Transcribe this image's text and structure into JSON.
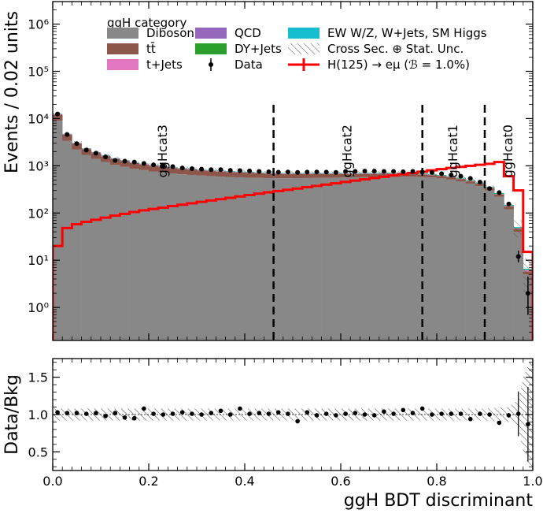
{
  "chart_data": [
    {
      "type": "area",
      "title": "",
      "legend_title": "ggH category",
      "xlabel": "",
      "ylabel": "Events / 0.02 units",
      "xlim": [
        0.0,
        1.0
      ],
      "ylim": [
        0.2,
        3000000
      ],
      "yscale": "log",
      "yticks": [
        {
          "value": 1,
          "label": "10⁰"
        },
        {
          "value": 10,
          "label": "10¹"
        },
        {
          "value": 100,
          "label": "10²"
        },
        {
          "value": 1000,
          "label": "10³"
        },
        {
          "value": 10000,
          "label": "10⁴"
        },
        {
          "value": 100000,
          "label": "10⁵"
        },
        {
          "value": 1000000,
          "label": "10⁶"
        }
      ],
      "legend": [
        {
          "name": "Diboson",
          "color": "#888888",
          "kind": "fill"
        },
        {
          "name": "tt̄",
          "color": "#8c564b",
          "kind": "fill"
        },
        {
          "name": "t+Jets",
          "color": "#e377c2",
          "kind": "fill"
        },
        {
          "name": "QCD",
          "color": "#9467bd",
          "kind": "fill"
        },
        {
          "name": "DY+Jets",
          "color": "#2ca02c",
          "kind": "fill"
        },
        {
          "name": "Data",
          "color": "#000000",
          "kind": "marker"
        },
        {
          "name": "EW W/Z, W+Jets, SM Higgs",
          "color": "#17becf",
          "kind": "fill"
        },
        {
          "name": "Cross Sec. ⊕ Stat. Unc.",
          "color": "#555555",
          "kind": "hatch"
        },
        {
          "name": "H(125) → eμ (ℬ = 1.0%)",
          "color": "#ff0000",
          "kind": "line"
        }
      ],
      "category_boundaries": [
        0.46,
        0.77,
        0.9
      ],
      "category_labels": [
        {
          "label": "ggHcat3",
          "x": 0.23
        },
        {
          "label": "ggHcat2",
          "x": 0.615
        },
        {
          "label": "ggHcat1",
          "x": 0.835
        },
        {
          "label": "ggHcat0",
          "x": 0.95
        }
      ],
      "bin_edges": [
        0.0,
        0.02,
        0.04,
        0.06,
        0.08,
        0.1,
        0.12,
        0.14,
        0.16,
        0.18,
        0.2,
        0.22,
        0.24,
        0.26,
        0.28,
        0.3,
        0.32,
        0.34,
        0.36,
        0.38,
        0.4,
        0.42,
        0.44,
        0.46,
        0.48,
        0.5,
        0.52,
        0.54,
        0.56,
        0.58,
        0.6,
        0.62,
        0.64,
        0.66,
        0.68,
        0.7,
        0.72,
        0.74,
        0.76,
        0.78,
        0.8,
        0.82,
        0.84,
        0.86,
        0.88,
        0.9,
        0.92,
        0.94,
        0.96,
        0.98,
        1.0
      ],
      "series": [
        {
          "name": "Diboson",
          "values": [
            9000,
            3400,
            2200,
            1700,
            1400,
            1200,
            1050,
            950,
            870,
            810,
            760,
            720,
            690,
            660,
            640,
            620,
            605,
            590,
            580,
            570,
            560,
            555,
            548,
            545,
            545,
            548,
            550,
            552,
            555,
            560,
            565,
            570,
            575,
            580,
            585,
            588,
            590,
            588,
            580,
            565,
            540,
            510,
            470,
            420,
            370,
            300,
            220,
            120,
            40,
            5
          ]
        },
        {
          "name": "tt̄",
          "values": [
            3000,
            1150,
            750,
            540,
            450,
            380,
            330,
            300,
            275,
            255,
            235,
            220,
            205,
            195,
            185,
            175,
            168,
            160,
            153,
            147,
            142,
            137,
            132,
            128,
            124,
            120,
            116,
            113,
            110,
            107,
            104,
            100,
            97,
            93,
            90,
            87,
            83,
            79,
            75,
            70,
            65,
            60,
            54,
            48,
            42,
            36,
            28,
            17,
            6,
            0.8
          ]
        },
        {
          "name": "t+Jets",
          "values": [
            300,
            110,
            70,
            55,
            45,
            38,
            33,
            30,
            27,
            25,
            23,
            22,
            21,
            20,
            19,
            18,
            17,
            17,
            16,
            16,
            15,
            15,
            15,
            14,
            14,
            14,
            14,
            13,
            13,
            13,
            13,
            12,
            12,
            12,
            12,
            11,
            11,
            11,
            10,
            10,
            9,
            9,
            8,
            7,
            6,
            5,
            4,
            2.5,
            1,
            0.3
          ]
        },
        {
          "name": "QCD",
          "values": [
            60,
            25,
            16,
            12,
            10,
            9,
            8,
            7,
            7,
            6,
            6,
            6,
            5,
            5,
            5,
            5,
            5,
            5,
            5,
            4,
            4,
            4,
            4,
            4,
            4,
            4,
            4,
            4,
            4,
            4,
            4,
            4,
            4,
            4,
            4,
            4,
            3,
            3,
            3,
            3,
            3,
            3,
            3,
            2,
            2,
            2,
            1.5,
            1,
            0.5,
            0.1
          ]
        },
        {
          "name": "DY+Jets",
          "values": [
            80,
            35,
            22,
            17,
            14,
            12,
            11,
            10,
            10,
            9,
            9,
            9,
            9,
            9,
            9,
            9,
            9,
            9,
            9,
            9,
            9,
            9,
            9,
            9,
            10,
            10,
            10,
            10,
            10,
            10,
            11,
            11,
            11,
            11,
            12,
            12,
            12,
            12,
            12,
            12,
            12,
            11,
            11,
            10,
            9,
            8,
            6,
            4,
            1.5,
            0.2
          ]
        },
        {
          "name": "EW W/Z, W+Jets, SM Higgs",
          "values": [
            120,
            50,
            32,
            24,
            20,
            17,
            15,
            14,
            13,
            12,
            12,
            11,
            11,
            11,
            11,
            11,
            11,
            11,
            11,
            11,
            11,
            11,
            11,
            11,
            11,
            12,
            12,
            12,
            12,
            12,
            12,
            12,
            12,
            12,
            12,
            12,
            12,
            12,
            12,
            12,
            12,
            11,
            11,
            10,
            9,
            8,
            6,
            4,
            1.5,
            0.2
          ]
        },
        {
          "name": "H(125) → eμ (ℬ = 1.0%)",
          "values": [
            20,
            48,
            58,
            65,
            72,
            80,
            88,
            96,
            105,
            114,
            122,
            130,
            140,
            150,
            160,
            172,
            184,
            196,
            210,
            224,
            240,
            256,
            274,
            292,
            310,
            330,
            352,
            375,
            400,
            425,
            455,
            485,
            515,
            550,
            585,
            625,
            665,
            705,
            750,
            800,
            850,
            900,
            950,
            1000,
            1050,
            1100,
            1200,
            600,
            300,
            15
          ]
        }
      ],
      "data": {
        "x": [
          0.01,
          0.03,
          0.05,
          0.07,
          0.09,
          0.11,
          0.13,
          0.15,
          0.17,
          0.19,
          0.21,
          0.23,
          0.25,
          0.27,
          0.29,
          0.31,
          0.33,
          0.35,
          0.37,
          0.39,
          0.41,
          0.43,
          0.45,
          0.47,
          0.49,
          0.51,
          0.53,
          0.55,
          0.57,
          0.59,
          0.61,
          0.63,
          0.65,
          0.67,
          0.69,
          0.71,
          0.73,
          0.75,
          0.77,
          0.79,
          0.81,
          0.83,
          0.85,
          0.87,
          0.89,
          0.91,
          0.93,
          0.95,
          0.97,
          0.99
        ],
        "y": [
          12500,
          4600,
          2950,
          2150,
          1850,
          1550,
          1300,
          1250,
          1200,
          1120,
          1050,
          1000,
          960,
          900,
          870,
          850,
          830,
          830,
          800,
          790,
          780,
          760,
          745,
          730,
          740,
          725,
          735,
          740,
          735,
          725,
          760,
          760,
          770,
          770,
          760,
          760,
          750,
          760,
          740,
          720,
          680,
          640,
          600,
          540,
          450,
          330,
          270,
          155,
          12,
          2
        ],
        "yerr_low": [
          0,
          0,
          0,
          0,
          0,
          0,
          0,
          0,
          0,
          0,
          0,
          0,
          0,
          0,
          0,
          0,
          0,
          0,
          0,
          0,
          0,
          0,
          0,
          0,
          0,
          0,
          0,
          0,
          0,
          0,
          0,
          0,
          0,
          0,
          0,
          0,
          0,
          0,
          0,
          0,
          0,
          0,
          0,
          0,
          0,
          0,
          0,
          0,
          3,
          1.3
        ],
        "yerr_high": [
          0,
          0,
          0,
          0,
          0,
          0,
          0,
          0,
          0,
          0,
          0,
          0,
          0,
          0,
          0,
          0,
          0,
          0,
          0,
          0,
          0,
          0,
          0,
          0,
          0,
          0,
          0,
          0,
          0,
          0,
          0,
          0,
          0,
          0,
          0,
          0,
          0,
          0,
          0,
          0,
          0,
          0,
          0,
          0,
          0,
          0,
          0,
          0,
          4,
          2.5
        ]
      },
      "uncertainty_band_rel": 0.08
    },
    {
      "type": "scatter",
      "title": "",
      "xlabel": "ggH BDT discriminant",
      "ylabel": "Data/Bkg",
      "xlim": [
        0.0,
        1.0
      ],
      "ylim": [
        0.25,
        1.75
      ],
      "xticks": [
        {
          "value": 0.0,
          "label": "0.0"
        },
        {
          "value": 0.2,
          "label": "0.2"
        },
        {
          "value": 0.4,
          "label": "0.4"
        },
        {
          "value": 0.6,
          "label": "0.6"
        },
        {
          "value": 0.8,
          "label": "0.8"
        },
        {
          "value": 1.0,
          "label": "1.0"
        }
      ],
      "yticks": [
        {
          "value": 0.5,
          "label": "0.5"
        },
        {
          "value": 1.0,
          "label": "1.0"
        },
        {
          "value": 1.5,
          "label": "1.5"
        }
      ],
      "reference_line": 1.0,
      "x": [
        0.01,
        0.03,
        0.05,
        0.07,
        0.09,
        0.11,
        0.13,
        0.15,
        0.17,
        0.19,
        0.21,
        0.23,
        0.25,
        0.27,
        0.29,
        0.31,
        0.33,
        0.35,
        0.37,
        0.39,
        0.41,
        0.43,
        0.45,
        0.47,
        0.49,
        0.51,
        0.53,
        0.55,
        0.57,
        0.59,
        0.61,
        0.63,
        0.65,
        0.67,
        0.69,
        0.71,
        0.73,
        0.75,
        0.77,
        0.79,
        0.81,
        0.83,
        0.85,
        0.87,
        0.89,
        0.91,
        0.93,
        0.95,
        0.97,
        0.99
      ],
      "y": [
        1.03,
        1.02,
        1.02,
        1.01,
        1.02,
        0.98,
        1.02,
        0.96,
        0.95,
        1.08,
        1.01,
        1.0,
        1.01,
        1.03,
        1.01,
        1.0,
        1.02,
        1.05,
        1.0,
        1.08,
        1.01,
        1.02,
        1.01,
        1.03,
        1.01,
        0.91,
        1.03,
        0.99,
        1.01,
        0.99,
        1.01,
        1.02,
        1.0,
        0.99,
        1.04,
        1.01,
        1.06,
        1.02,
        1.08,
        1.0,
        1.01,
        1.01,
        1.01,
        0.94,
        1.01,
        1.0,
        0.89,
        0.99,
        1.01,
        0.87
      ],
      "yerr": [
        0.01,
        0.01,
        0.01,
        0.01,
        0.01,
        0.01,
        0.01,
        0.01,
        0.01,
        0.01,
        0.01,
        0.01,
        0.01,
        0.01,
        0.01,
        0.01,
        0.01,
        0.01,
        0.01,
        0.01,
        0.01,
        0.01,
        0.01,
        0.01,
        0.01,
        0.01,
        0.01,
        0.01,
        0.01,
        0.01,
        0.01,
        0.01,
        0.01,
        0.01,
        0.01,
        0.01,
        0.01,
        0.01,
        0.01,
        0.01,
        0.01,
        0.01,
        0.01,
        0.01,
        0.01,
        0.01,
        0.01,
        0.03,
        0.3,
        0.5
      ],
      "band": {
        "x": [
          0.0,
          0.9,
          0.95,
          0.97,
          0.98,
          1.0
        ],
        "rel_err": [
          0.08,
          0.08,
          0.1,
          0.2,
          0.5,
          0.8
        ]
      }
    }
  ]
}
